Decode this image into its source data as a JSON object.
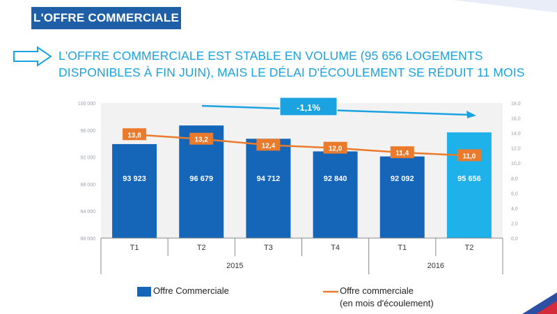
{
  "header": {
    "title": "L'OFFRE COMMERCIALE"
  },
  "headline": {
    "text": "L'OFFRE COMMERCIALE EST STABLE EN VOLUME (95 656 LOGEMENTS DISPONIBLES À FIN JUIN), MAIS LE DÉLAI D'ÉCOULEMENT SE RÉDUIT 11 MOIS"
  },
  "colors": {
    "header_band": "#1f5fa8",
    "headline": "#1aa3e0",
    "bar_dark": "#1565b8",
    "bar_light": "#1eb1ea",
    "line": "#ea7a2c",
    "trend_box": "#1aa3e0"
  },
  "chart_data": {
    "type": "bar",
    "periods": [
      {
        "quarter": "T1",
        "year": "2015"
      },
      {
        "quarter": "T2",
        "year": "2015"
      },
      {
        "quarter": "T3",
        "year": "2015"
      },
      {
        "quarter": "T4",
        "year": "2015"
      },
      {
        "quarter": "T1",
        "year": "2016"
      },
      {
        "quarter": "T2",
        "year": "2016"
      }
    ],
    "years": [
      "2015",
      "2016"
    ],
    "series": [
      {
        "name": "Offre Commerciale",
        "kind": "bar",
        "axis": "left",
        "values": [
          93923,
          96679,
          94712,
          92840,
          92092,
          95656
        ],
        "labels": [
          "93 923",
          "96 679",
          "94 712",
          "92 840",
          "92 092",
          "95 656"
        ]
      },
      {
        "name": "Offre commerciale",
        "name_line2": "(en mois d'écoulement)",
        "kind": "line",
        "axis": "right",
        "values": [
          13.8,
          13.2,
          12.4,
          12.0,
          11.4,
          11.0
        ],
        "labels": [
          "13,8",
          "13,2",
          "12,4",
          "12,0",
          "11,4",
          "11,0"
        ]
      }
    ],
    "y_left": {
      "min": 80000,
      "max": 100000,
      "ticks": [
        "100 000",
        "96 000",
        "92 000",
        "88 000",
        "84 000",
        "80 000"
      ]
    },
    "y_right": {
      "min": 0,
      "max": 18,
      "ticks": [
        "18,0",
        "16,0",
        "14,0",
        "12,0",
        "10,0",
        "8,0",
        "6,0",
        "4,0",
        "2,0",
        "0,0"
      ]
    },
    "annotation": {
      "text": "-1,1%"
    },
    "legend": {
      "bar_label": "Offre Commerciale",
      "line_label_1": "Offre commerciale",
      "line_label_2": "(en mois d'écoulement)"
    }
  }
}
